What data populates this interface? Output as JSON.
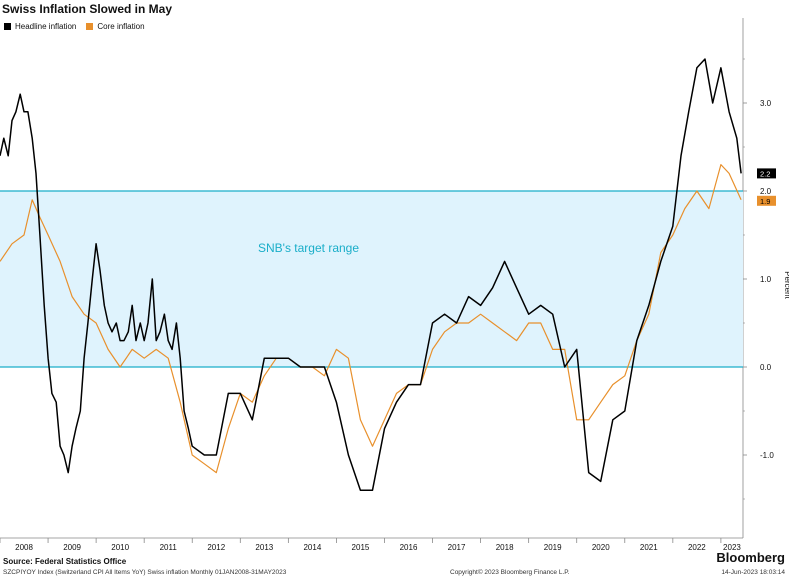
{
  "title": "Swiss Inflation Slowed in May",
  "legend": {
    "headline_label": "Headline inflation",
    "core_label": "Core inflation"
  },
  "colors": {
    "headline": "#000000",
    "core": "#e8902c",
    "band_fill": "#dff3fd",
    "band_line": "#1aaec9",
    "band_text": "#1aaec9",
    "label_headline_bg": "#000000",
    "label_core_bg": "#e8902c"
  },
  "annotation": "SNB's target range",
  "footer": {
    "source": "Source: Federal Statistics Office",
    "meta": "SZCPIYOY Index (Switzerland CPI All Items YoY) Swiss inflation  Monthly 01JAN2008-31MAY2023",
    "copyright": "Copyright© 2023 Bloomberg Finance L.P.",
    "date": "14-Jun-2023 18:03:14",
    "brand": "Bloomberg"
  },
  "chart_data": {
    "type": "line",
    "ylabel": "Percent",
    "ylim": [
      -1.9,
      3.9
    ],
    "yticks": [
      3.0,
      2.0,
      1.0,
      0.0,
      -1.0
    ],
    "ytick_labels": [
      "3.0",
      "2.0",
      "1.0",
      "0.0",
      "-1.0"
    ],
    "x_range": [
      2008.0,
      2023.46
    ],
    "xtick_labels": [
      "2008",
      "2009",
      "2010",
      "2011",
      "2012",
      "2013",
      "2014",
      "2015",
      "2016",
      "2017",
      "2018",
      "2019",
      "2020",
      "2021",
      "2022",
      "2023"
    ],
    "band": {
      "low": 0.0,
      "high": 2.0,
      "label": "SNB's target range"
    },
    "last_values": {
      "headline": "2.2",
      "core": "1.9"
    },
    "series": [
      {
        "name": "Headline inflation",
        "x": [
          2008.0,
          2008.08,
          2008.17,
          2008.25,
          2008.33,
          2008.42,
          2008.5,
          2008.58,
          2008.67,
          2008.75,
          2008.83,
          2008.92,
          2009.0,
          2009.08,
          2009.17,
          2009.25,
          2009.33,
          2009.42,
          2009.5,
          2009.58,
          2009.67,
          2009.75,
          2009.83,
          2009.92,
          2010.0,
          2010.08,
          2010.17,
          2010.25,
          2010.33,
          2010.42,
          2010.5,
          2010.58,
          2010.67,
          2010.75,
          2010.83,
          2010.92,
          2011.0,
          2011.08,
          2011.17,
          2011.25,
          2011.33,
          2011.42,
          2011.5,
          2011.58,
          2011.67,
          2011.75,
          2011.83,
          2011.92,
          2012.0,
          2012.25,
          2012.5,
          2012.75,
          2013.0,
          2013.25,
          2013.5,
          2013.75,
          2014.0,
          2014.25,
          2014.5,
          2014.75,
          2015.0,
          2015.25,
          2015.5,
          2015.75,
          2016.0,
          2016.25,
          2016.5,
          2016.75,
          2017.0,
          2017.25,
          2017.5,
          2017.75,
          2018.0,
          2018.25,
          2018.5,
          2018.75,
          2019.0,
          2019.25,
          2019.5,
          2019.75,
          2020.0,
          2020.25,
          2020.5,
          2020.75,
          2021.0,
          2021.25,
          2021.5,
          2021.75,
          2022.0,
          2022.17,
          2022.33,
          2022.5,
          2022.67,
          2022.83,
          2023.0,
          2023.17,
          2023.33,
          2023.42
        ],
        "values": [
          2.4,
          2.6,
          2.4,
          2.8,
          2.9,
          3.1,
          2.9,
          2.9,
          2.6,
          2.2,
          1.5,
          0.7,
          0.1,
          -0.3,
          -0.4,
          -0.9,
          -1.0,
          -1.2,
          -0.9,
          -0.7,
          -0.5,
          0.1,
          0.5,
          1.0,
          1.4,
          1.1,
          0.7,
          0.5,
          0.4,
          0.5,
          0.3,
          0.3,
          0.4,
          0.7,
          0.3,
          0.5,
          0.3,
          0.5,
          1.0,
          0.3,
          0.4,
          0.6,
          0.3,
          0.2,
          0.5,
          0.1,
          -0.5,
          -0.7,
          -0.9,
          -1.0,
          -1.0,
          -0.3,
          -0.3,
          -0.6,
          0.1,
          0.1,
          0.1,
          0.0,
          0.0,
          0.0,
          -0.4,
          -1.0,
          -1.4,
          -1.4,
          -0.7,
          -0.4,
          -0.2,
          -0.2,
          0.5,
          0.6,
          0.5,
          0.8,
          0.7,
          0.9,
          1.2,
          0.9,
          0.6,
          0.7,
          0.6,
          0.0,
          0.2,
          -1.2,
          -1.3,
          -0.6,
          -0.5,
          0.3,
          0.7,
          1.2,
          1.6,
          2.4,
          2.9,
          3.4,
          3.5,
          3.0,
          3.4,
          2.9,
          2.6,
          2.2
        ]
      },
      {
        "name": "Core inflation",
        "x": [
          2008.0,
          2008.25,
          2008.5,
          2008.67,
          2008.83,
          2009.0,
          2009.25,
          2009.5,
          2009.75,
          2010.0,
          2010.25,
          2010.5,
          2010.75,
          2011.0,
          2011.25,
          2011.5,
          2011.75,
          2012.0,
          2012.25,
          2012.5,
          2012.75,
          2013.0,
          2013.25,
          2013.5,
          2013.75,
          2014.0,
          2014.25,
          2014.5,
          2014.75,
          2015.0,
          2015.25,
          2015.5,
          2015.75,
          2016.0,
          2016.25,
          2016.5,
          2016.75,
          2017.0,
          2017.25,
          2017.5,
          2017.75,
          2018.0,
          2018.25,
          2018.5,
          2018.75,
          2019.0,
          2019.25,
          2019.5,
          2019.75,
          2020.0,
          2020.25,
          2020.5,
          2020.75,
          2021.0,
          2021.25,
          2021.5,
          2021.75,
          2022.0,
          2022.25,
          2022.5,
          2022.75,
          2023.0,
          2023.17,
          2023.42
        ],
        "values": [
          1.2,
          1.4,
          1.5,
          1.9,
          1.7,
          1.5,
          1.2,
          0.8,
          0.6,
          0.5,
          0.2,
          0.0,
          0.2,
          0.1,
          0.2,
          0.1,
          -0.4,
          -1.0,
          -1.1,
          -1.2,
          -0.7,
          -0.3,
          -0.4,
          -0.1,
          0.1,
          0.1,
          0.0,
          0.0,
          -0.1,
          0.2,
          0.1,
          -0.6,
          -0.9,
          -0.6,
          -0.3,
          -0.2,
          -0.2,
          0.2,
          0.4,
          0.5,
          0.5,
          0.6,
          0.5,
          0.4,
          0.3,
          0.5,
          0.5,
          0.2,
          0.2,
          -0.6,
          -0.6,
          -0.4,
          -0.2,
          -0.1,
          0.3,
          0.6,
          1.3,
          1.5,
          1.8,
          2.0,
          1.8,
          2.3,
          2.2,
          1.9
        ]
      }
    ]
  }
}
